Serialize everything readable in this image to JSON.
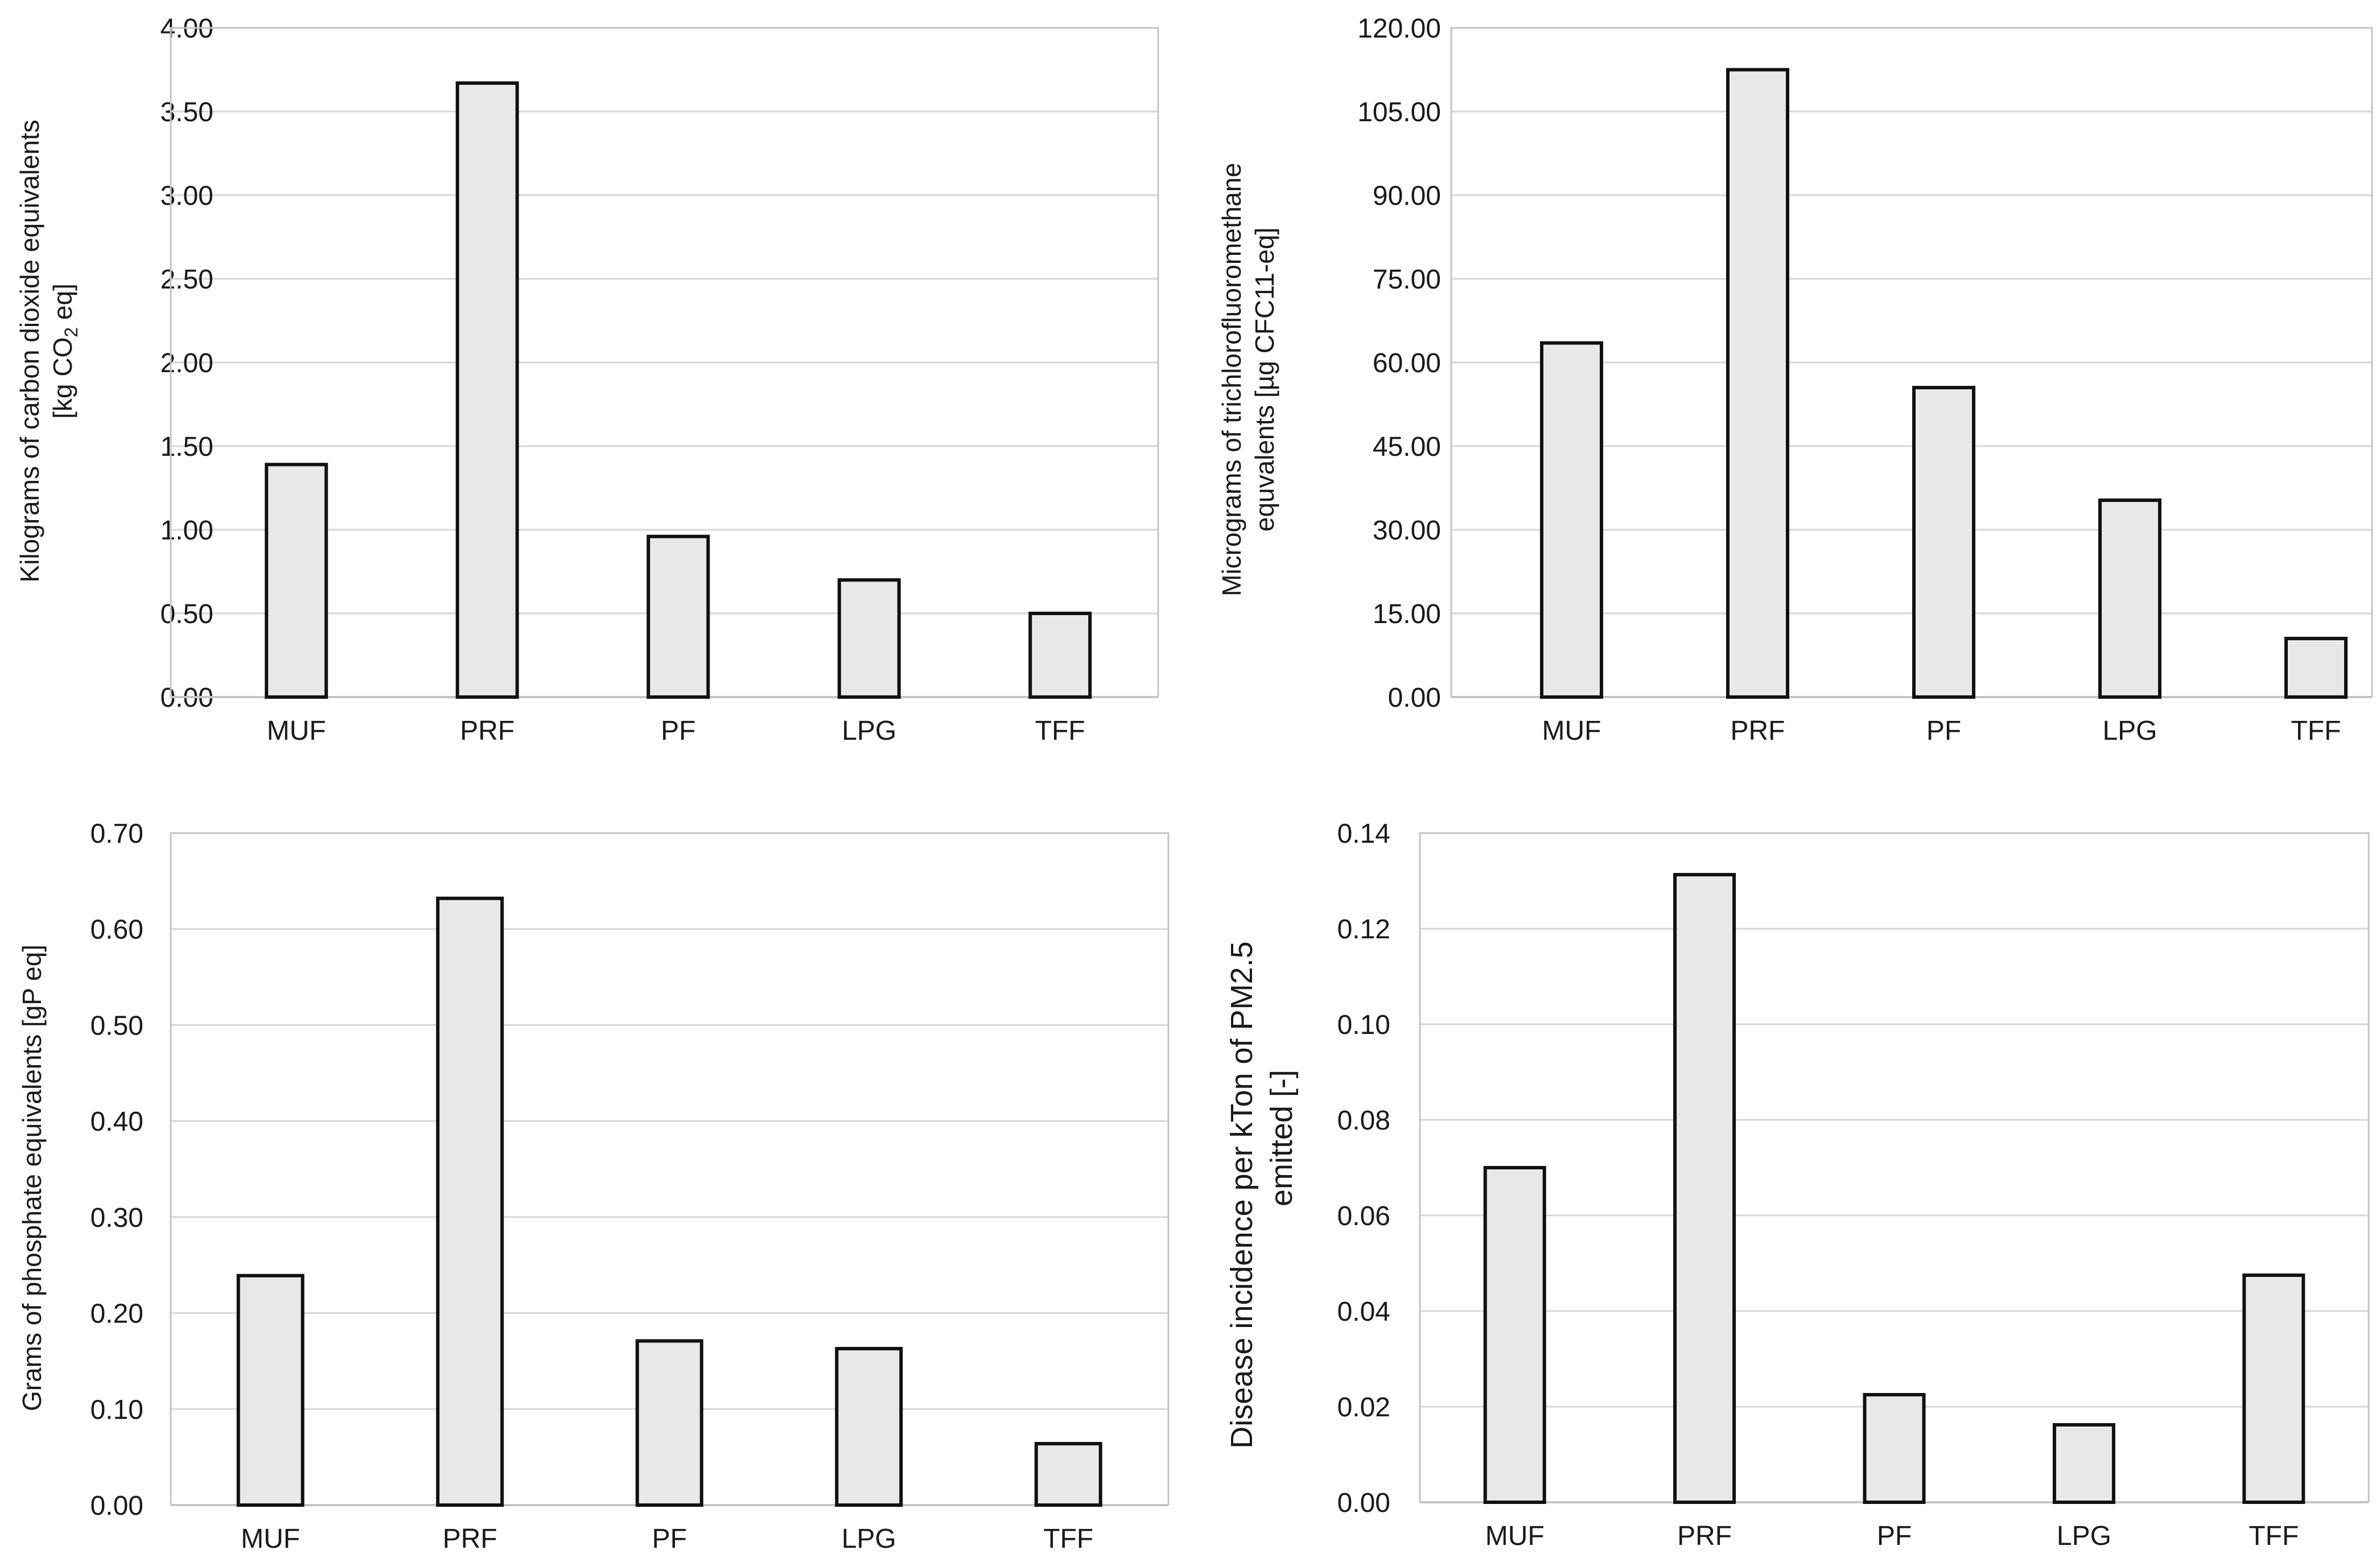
{
  "colors": {
    "bar_fill": "#e8e8e8",
    "bar_stroke": "#111111",
    "grid": "#d6d6d6",
    "frame": "#c4c4c4",
    "text": "#1a1a1a"
  },
  "chart_data": [
    {
      "type": "bar",
      "categories": [
        "MUF",
        "PRF",
        "PF",
        "LPG",
        "TFF"
      ],
      "values": [
        1.39,
        3.67,
        0.96,
        0.7,
        0.5
      ],
      "yticks": [
        "0.00",
        "0.50",
        "1.00",
        "1.50",
        "2.00",
        "2.50",
        "3.00",
        "3.50",
        "4.00"
      ],
      "ylim": [
        0,
        4
      ],
      "ylabel_line1": "Kilograms of carbon dioxide equivalents",
      "ylabel_line2_pre": "[kg CO",
      "ylabel_line2_sub": "2",
      "ylabel_line2_post": " eq]",
      "grid": true,
      "legend": "none"
    },
    {
      "type": "bar",
      "categories": [
        "MUF",
        "PRF",
        "PF",
        "LPG",
        "TFF"
      ],
      "values": [
        63.5,
        112.5,
        55.5,
        35.3,
        10.5
      ],
      "yticks": [
        "0.00",
        "15.00",
        "30.00",
        "45.00",
        "60.00",
        "75.00",
        "90.00",
        "105.00",
        "120.00"
      ],
      "ylim": [
        0,
        120
      ],
      "ylabel_line1": "Micrograms of trichlorofluoromethane",
      "ylabel_line2": "equvalents [µg  CFC11-eq]",
      "grid": true,
      "legend": "none"
    },
    {
      "type": "bar",
      "categories": [
        "MUF",
        "PRF",
        "PF",
        "LPG",
        "TFF"
      ],
      "values": [
        0.239,
        0.632,
        0.171,
        0.163,
        0.064
      ],
      "yticks": [
        "0.00",
        "0.10",
        "0.20",
        "0.30",
        "0.40",
        "0.50",
        "0.60",
        "0.70"
      ],
      "ylim": [
        0,
        0.7
      ],
      "ylabel_line1": "Grams of phosphate equivalents  [gP eq]",
      "grid": true,
      "legend": "none"
    },
    {
      "type": "bar",
      "categories": [
        "MUF",
        "PRF",
        "PF",
        "LPG",
        "TFF"
      ],
      "values": [
        0.07,
        0.1313,
        0.0225,
        0.0162,
        0.0475
      ],
      "yticks": [
        "0.00",
        "0.02",
        "0.04",
        "0.06",
        "0.08",
        "0.10",
        "0.12",
        "0.14"
      ],
      "ylim": [
        0,
        0.14
      ],
      "ylabel_line1": "Disease incidence per kTon of PM2.5",
      "ylabel_line2": "emitted [-]",
      "grid": true,
      "legend": "none"
    }
  ]
}
